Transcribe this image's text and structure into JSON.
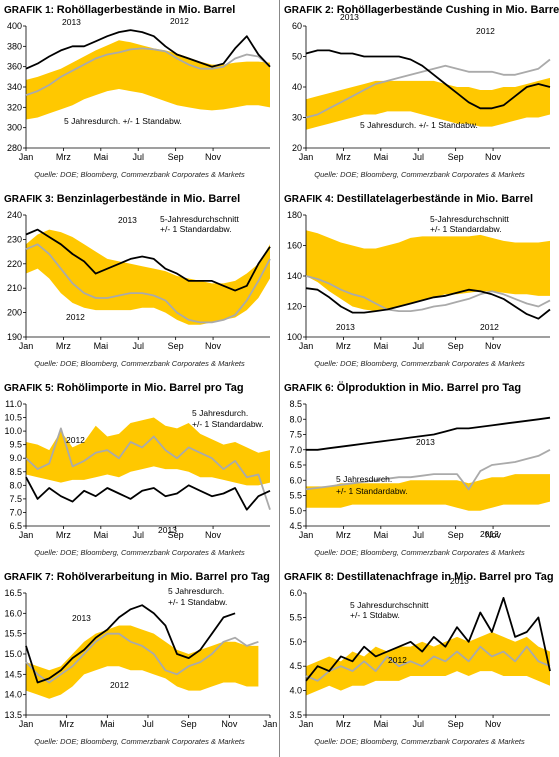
{
  "source_line": "Quelle: DOE; Bloomberg, Commerzbank Corporates & Markets",
  "colors": {
    "band": "#FFC800",
    "series_2013": "#000000",
    "series_2012": "#AAAAAA"
  },
  "chart_data": [
    {
      "type": "line",
      "label": "GRAFIK 1:",
      "title": "Rohöllagerbestände in Mio. Barrel",
      "ylim": [
        280,
        400
      ],
      "yticks": [
        280,
        300,
        320,
        340,
        360,
        380,
        400
      ],
      "xticks": [
        "Jan",
        "Mrz",
        "Mai",
        "Jul",
        "Sep",
        "Nov"
      ],
      "band": {
        "name": "5 Jahresdurch. +/- 1 Standabw.",
        "upper": [
          347,
          350,
          354,
          358,
          364,
          370,
          376,
          381,
          386,
          384,
          381,
          378,
          376,
          373,
          369,
          365,
          362,
          362,
          364,
          365,
          365,
          364
        ],
        "lower": [
          308,
          310,
          314,
          318,
          322,
          328,
          332,
          336,
          338,
          336,
          334,
          330,
          326,
          322,
          320,
          318,
          317,
          318,
          320,
          322,
          322,
          320
        ]
      },
      "series": [
        {
          "name": "2013",
          "values": [
            358,
            363,
            370,
            376,
            380,
            380,
            385,
            390,
            394,
            396,
            394,
            390,
            380,
            372,
            368,
            364,
            360,
            363,
            378,
            390,
            372,
            360
          ]
        },
        {
          "name": "2012",
          "values": [
            332,
            336,
            342,
            350,
            356,
            362,
            368,
            372,
            374,
            377,
            378,
            377,
            375,
            368,
            362,
            358,
            358,
            360,
            368,
            372,
            370,
            360
          ]
        }
      ],
      "annotations": [
        "2013",
        "2012",
        "5 Jahresdurch. +/-  1 Standabw."
      ]
    },
    {
      "type": "line",
      "label": "GRAFIK 2:",
      "title": "Rohöllagerbestände Cushing in Mio. Barrel",
      "ylim": [
        20,
        60
      ],
      "yticks": [
        20,
        30,
        40,
        50,
        60
      ],
      "xticks": [
        "Jan",
        "Mrz",
        "Mai",
        "Jul",
        "Sep",
        "Nov"
      ],
      "band": {
        "name": "5 Jahresdurch. +/- 1 Standabw.",
        "upper": [
          36,
          37,
          38,
          39,
          40,
          41,
          42,
          42,
          42,
          42,
          42,
          42,
          41,
          40,
          40,
          39,
          39,
          40,
          40,
          41,
          42,
          43
        ],
        "lower": [
          26,
          27,
          28,
          29,
          30,
          31,
          31,
          32,
          32,
          32,
          31,
          30,
          29,
          28,
          28,
          27,
          27,
          28,
          29,
          30,
          30,
          31
        ]
      },
      "series": [
        {
          "name": "2013",
          "values": [
            51,
            52,
            52,
            51,
            51,
            50,
            50,
            50,
            50,
            49,
            47,
            44,
            41,
            38,
            35,
            33,
            33,
            34,
            37,
            40,
            41,
            40
          ]
        },
        {
          "name": "2012",
          "values": [
            30,
            31,
            33,
            35,
            37,
            39,
            41,
            42,
            43,
            44,
            45,
            46,
            47,
            46,
            45,
            45,
            45,
            44,
            44,
            45,
            46,
            49
          ]
        }
      ],
      "annotations": [
        "2013",
        "2012",
        "5 Jahresdurch. +/-  1 Standabw."
      ]
    },
    {
      "type": "line",
      "label": "GRAFIK 3:",
      "title": "Benzinlagerbestände in Mio. Barrel",
      "ylim": [
        190,
        240
      ],
      "yticks": [
        190,
        200,
        210,
        220,
        230,
        240
      ],
      "xticks": [
        "Jan",
        "Mrz",
        "Mai",
        "Jul",
        "Sep",
        "Nov"
      ],
      "band": {
        "name": "5-Jahresdurchschnitt +/- 1 Standardabw.",
        "upper": [
          228,
          232,
          234,
          233,
          231,
          228,
          225,
          222,
          221,
          220,
          219,
          218,
          217,
          215,
          214,
          213,
          212,
          212,
          213,
          216,
          220,
          228
        ],
        "lower": [
          216,
          218,
          214,
          208,
          204,
          202,
          201,
          201,
          201,
          201,
          202,
          202,
          200,
          197,
          195,
          195,
          196,
          197,
          198,
          201,
          206,
          214
        ]
      },
      "series": [
        {
          "name": "2013",
          "values": [
            232,
            234,
            231,
            228,
            224,
            221,
            216,
            218,
            220,
            222,
            223,
            222,
            218,
            216,
            213,
            213,
            213,
            211,
            209,
            211,
            220,
            227
          ]
        },
        {
          "name": "2012",
          "values": [
            226,
            228,
            224,
            218,
            212,
            208,
            206,
            206,
            207,
            208,
            208,
            207,
            205,
            200,
            197,
            196,
            196,
            197,
            199,
            205,
            213,
            222
          ]
        }
      ],
      "annotations": [
        "2013",
        "2012",
        "5-Jahresdurchschnitt",
        "+/- 1 Standardabw."
      ]
    },
    {
      "type": "line",
      "label": "GRAFIK 4:",
      "title": "Destillatelagerbestände in Mio. Barrel",
      "ylim": [
        100,
        180
      ],
      "yticks": [
        100,
        120,
        140,
        160,
        180
      ],
      "xticks": [
        "Jan",
        "Mrz",
        "Mai",
        "Jul",
        "Sep",
        "Nov"
      ],
      "band": {
        "name": "5-Jahresdurchschnitt +/- 1 Standardabw.",
        "upper": [
          170,
          168,
          165,
          162,
          160,
          158,
          158,
          160,
          162,
          165,
          166,
          166,
          166,
          166,
          166,
          167,
          165,
          163,
          162,
          162,
          162,
          163
        ],
        "lower": [
          140,
          136,
          130,
          125,
          120,
          118,
          117,
          118,
          120,
          122,
          124,
          126,
          128,
          128,
          129,
          130,
          130,
          129,
          128,
          128,
          127,
          127
        ]
      },
      "series": [
        {
          "name": "2013",
          "values": [
            132,
            131,
            126,
            120,
            116,
            116,
            117,
            118,
            120,
            122,
            124,
            126,
            127,
            129,
            131,
            130,
            128,
            125,
            120,
            115,
            112,
            118
          ]
        },
        {
          "name": "2012",
          "values": [
            140,
            138,
            135,
            131,
            128,
            126,
            122,
            118,
            117,
            117,
            118,
            120,
            121,
            123,
            125,
            128,
            130,
            128,
            125,
            122,
            120,
            124
          ]
        }
      ],
      "annotations": [
        "2013",
        "2012",
        "5-Jahresdurchschnitt",
        "+/- 1 Standardabw."
      ]
    },
    {
      "type": "line",
      "label": "GRAFIK 5:",
      "title": "Rohölimporte in Mio. Barrel pro Tag",
      "ylim": [
        6.5,
        11.0
      ],
      "yticks": [
        6.5,
        7.0,
        7.5,
        8.0,
        8.5,
        9.0,
        9.5,
        10.0,
        10.5,
        11.0
      ],
      "xticks": [
        "Jan",
        "Mrz",
        "Mai",
        "Jul",
        "Sep",
        "Nov"
      ],
      "band": {
        "name": "5 Jahresdurch. +/- 1 Standardabw.",
        "upper": [
          9.6,
          9.5,
          9.3,
          10.0,
          9.4,
          9.6,
          10.2,
          9.8,
          9.9,
          10.3,
          10.4,
          10.5,
          10.2,
          10.1,
          10.3,
          9.9,
          9.7,
          9.5,
          9.6,
          9.4,
          9.2,
          9.3
        ],
        "lower": [
          8.4,
          8.3,
          8.2,
          8.1,
          8.2,
          8.2,
          8.3,
          8.4,
          8.3,
          8.5,
          8.6,
          8.7,
          8.6,
          8.6,
          8.5,
          8.3,
          8.3,
          8.2,
          8.1,
          8.0,
          8.0,
          8.1
        ]
      },
      "series": [
        {
          "name": "2013",
          "values": [
            8.3,
            7.5,
            7.9,
            7.6,
            7.4,
            7.8,
            7.6,
            7.9,
            7.7,
            7.5,
            7.8,
            7.9,
            7.6,
            7.7,
            8.0,
            7.8,
            7.6,
            7.7,
            7.9,
            7.1,
            7.6,
            7.8
          ]
        },
        {
          "name": "2012",
          "values": [
            9.0,
            8.6,
            8.8,
            10.1,
            8.7,
            8.9,
            9.2,
            9.3,
            9.0,
            9.6,
            9.4,
            9.8,
            9.3,
            9.0,
            9.4,
            9.2,
            9.0,
            8.6,
            8.9,
            8.3,
            8.4,
            7.1
          ]
        }
      ],
      "annotations": [
        "2012",
        "2013",
        "5 Jahresdurch.",
        "+/-  1 Standardabw."
      ]
    },
    {
      "type": "line",
      "label": "GRAFIK 6:",
      "title": "Ölproduktion in Mio. Barrel pro Tag",
      "ylim": [
        4.5,
        8.5
      ],
      "yticks": [
        4.5,
        5.0,
        5.5,
        6.0,
        6.5,
        7.0,
        7.5,
        8.0,
        8.5
      ],
      "xticks": [
        "Jan",
        "Mrz",
        "Mai",
        "Jul",
        "Sep",
        "Nov"
      ],
      "band": {
        "name": "5 Jahresdurch. +/- 1 Standardabw.",
        "upper": [
          5.8,
          5.8,
          5.8,
          5.9,
          5.9,
          5.9,
          5.9,
          5.9,
          5.9,
          6.0,
          6.0,
          6.0,
          6.0,
          6.0,
          5.9,
          6.0,
          6.1,
          6.1,
          6.2,
          6.2,
          6.2,
          6.2
        ],
        "lower": [
          5.1,
          5.1,
          5.1,
          5.1,
          5.2,
          5.2,
          5.2,
          5.2,
          5.2,
          5.2,
          5.2,
          5.2,
          5.2,
          5.1,
          5.0,
          5.0,
          5.1,
          5.2,
          5.2,
          5.2,
          5.2,
          5.3
        ]
      },
      "series": [
        {
          "name": "2013",
          "values": [
            7.0,
            7.0,
            7.05,
            7.1,
            7.15,
            7.2,
            7.25,
            7.3,
            7.35,
            7.4,
            7.45,
            7.5,
            7.6,
            7.7,
            7.7,
            7.75,
            7.8,
            7.85,
            7.9,
            7.95,
            8.0,
            8.05
          ]
        },
        {
          "name": "2012",
          "values": [
            5.7,
            5.75,
            5.8,
            5.85,
            5.9,
            5.95,
            6.0,
            6.05,
            6.1,
            6.1,
            6.15,
            6.2,
            6.2,
            6.2,
            5.7,
            6.3,
            6.5,
            6.55,
            6.6,
            6.7,
            6.8,
            7.0
          ]
        }
      ],
      "annotations": [
        "2013",
        "2012",
        "5 Jahresdurch.",
        "+/-  1 Standardabw."
      ]
    },
    {
      "type": "line",
      "label": "GRAFIK 7:",
      "title": "Rohölverarbeitung in Mio. Barrel pro Tag",
      "ylim": [
        13.5,
        16.5
      ],
      "yticks": [
        13.5,
        14.0,
        14.5,
        15.0,
        15.5,
        16.0,
        16.5
      ],
      "xticks": [
        "Jan",
        "Mrz",
        "Mai",
        "Jul",
        "Sep",
        "Nov",
        "Jan"
      ],
      "band": {
        "name": "5 Jahresdurch. +/- 1 Standabw.",
        "upper": [
          14.8,
          14.7,
          14.6,
          14.7,
          15.0,
          15.3,
          15.5,
          15.6,
          15.7,
          15.7,
          15.6,
          15.5,
          15.3,
          15.1,
          15.0,
          15.1,
          15.2,
          15.3,
          15.3,
          15.2,
          15.2,
          null
        ],
        "lower": [
          14.1,
          14.0,
          13.9,
          14.0,
          14.2,
          14.5,
          14.6,
          14.7,
          14.7,
          14.6,
          14.6,
          14.5,
          14.4,
          14.2,
          14.1,
          14.1,
          14.2,
          14.3,
          14.3,
          14.2,
          14.2,
          null
        ]
      },
      "series": [
        {
          "name": "2013",
          "values": [
            15.2,
            14.3,
            14.4,
            14.6,
            14.9,
            15.1,
            15.4,
            15.6,
            15.9,
            16.1,
            16.2,
            16.0,
            15.7,
            15.0,
            14.9,
            15.1,
            15.5,
            15.9,
            16.0,
            null,
            null,
            null
          ]
        },
        {
          "name": "2012",
          "values": [
            14.8,
            14.5,
            14.3,
            14.5,
            14.7,
            15.0,
            15.3,
            15.5,
            15.5,
            15.3,
            15.2,
            15.0,
            14.6,
            14.5,
            14.7,
            14.8,
            15.0,
            15.3,
            15.4,
            15.2,
            15.3,
            null
          ]
        }
      ],
      "annotations": [
        "2013",
        "2012",
        "5 Jahresdurch.",
        "+/- 1 Standabw."
      ]
    },
    {
      "type": "line",
      "label": "GRAFIK 8:",
      "title": "Destillatenachfrage in Mio. Barrel pro Tag",
      "ylim": [
        3.5,
        6.0
      ],
      "yticks": [
        3.5,
        4.0,
        4.5,
        5.0,
        5.5,
        6.0
      ],
      "xticks": [
        "Jan",
        "Mrz",
        "Mai",
        "Jul",
        "Sep",
        "Nov"
      ],
      "band": {
        "name": "5 Jahresdurchschnitt +/- 1 Stdabw.",
        "upper": [
          4.5,
          4.6,
          4.7,
          4.6,
          4.8,
          4.7,
          4.9,
          4.8,
          4.9,
          4.9,
          5.0,
          4.9,
          5.0,
          5.1,
          5.0,
          5.1,
          5.2,
          5.1,
          5.0,
          5.1,
          4.9,
          4.8
        ],
        "lower": [
          3.9,
          4.0,
          4.1,
          4.0,
          4.1,
          4.1,
          4.2,
          4.2,
          4.2,
          4.3,
          4.3,
          4.3,
          4.3,
          4.4,
          4.3,
          4.4,
          4.4,
          4.3,
          4.3,
          4.3,
          4.2,
          4.1
        ]
      },
      "series": [
        {
          "name": "2013",
          "values": [
            4.2,
            4.5,
            4.4,
            4.7,
            4.6,
            4.9,
            4.7,
            4.8,
            4.9,
            5.0,
            4.8,
            5.1,
            4.9,
            5.3,
            5.0,
            5.6,
            5.2,
            5.9,
            5.1,
            5.2,
            5.5,
            4.4
          ]
        },
        {
          "name": "2012",
          "values": [
            4.3,
            4.2,
            4.4,
            4.5,
            4.4,
            4.6,
            4.4,
            4.7,
            4.5,
            4.6,
            4.5,
            4.7,
            4.6,
            4.8,
            4.6,
            4.9,
            4.7,
            4.8,
            4.6,
            4.9,
            4.6,
            4.5
          ]
        }
      ],
      "annotations": [
        "2013",
        "2012",
        "5 Jahresdurchschnitt",
        "+/- 1 Stdabw."
      ]
    }
  ]
}
